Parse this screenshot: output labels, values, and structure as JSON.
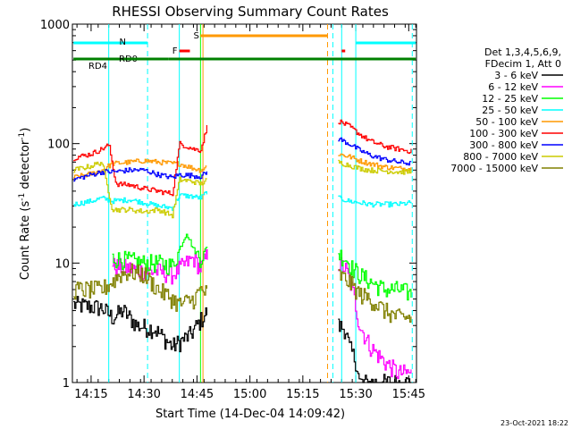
{
  "chart_data": {
    "type": "line",
    "title": "RHESSI Observing Summary Count Rates",
    "xlabel": "Start Time (14-Dec-04 14:09:42)",
    "ylabel_main": "Count Rate (s",
    "ylabel_sup1": "-1",
    "ylabel_mid": " detector",
    "ylabel_sup2": "-1",
    "ylabel_end": ")",
    "y_scale": "log",
    "ylim": [
      1,
      1000
    ],
    "xlim_min": [
      14.083,
      15.85
    ],
    "yticks": [
      {
        "v": 1,
        "label": "1"
      },
      {
        "v": 10,
        "label": "10"
      },
      {
        "v": 100,
        "label": "100"
      },
      {
        "v": 1000,
        "label": "1000"
      }
    ],
    "xticks": [
      {
        "t": 855,
        "label": "14:15"
      },
      {
        "t": 870,
        "label": "14:30"
      },
      {
        "t": 885,
        "label": "14:45"
      },
      {
        "t": 900,
        "label": "15:00"
      },
      {
        "t": 915,
        "label": "15:15"
      },
      {
        "t": 930,
        "label": "15:30"
      },
      {
        "t": 945,
        "label": "15:45"
      }
    ],
    "x_range_minutes": [
      849.7,
      947.2
    ],
    "legend_header": [
      "Det 1,3,4,5,6,9,",
      "FDecim 1, Att 0"
    ],
    "series": [
      {
        "name": "3 - 6 keV",
        "color": "#000000",
        "pre": [
          [
            850,
            4.5
          ],
          [
            858,
            4.2
          ],
          [
            861,
            3.5
          ],
          [
            864,
            4
          ],
          [
            868,
            3
          ],
          [
            873,
            2.8
          ],
          [
            878,
            2
          ],
          [
            883,
            2.5
          ],
          [
            888,
            4
          ]
        ],
        "post": [
          [
            925,
            3
          ],
          [
            927,
            2.8
          ],
          [
            928,
            2
          ],
          [
            930,
            1.5
          ],
          [
            931,
            1
          ],
          [
            935,
            1
          ],
          [
            940,
            1
          ],
          [
            946,
            1
          ]
        ]
      },
      {
        "name": "6 - 12 keV",
        "color": "#ff00ff",
        "pre": [
          [
            861,
            9.5
          ],
          [
            866,
            9
          ],
          [
            870,
            8.5
          ],
          [
            874,
            8.5
          ],
          [
            878,
            8
          ],
          [
            882,
            10
          ],
          [
            884,
            11
          ],
          [
            886,
            9
          ],
          [
            888,
            12
          ]
        ],
        "post": [
          [
            925,
            10
          ],
          [
            927,
            9
          ],
          [
            929,
            6
          ],
          [
            931,
            3
          ],
          [
            934,
            2
          ],
          [
            938,
            1.5
          ],
          [
            942,
            1.2
          ],
          [
            946,
            1.2
          ]
        ]
      },
      {
        "name": "12 - 25 keV",
        "color": "#00ff00",
        "pre": [
          [
            861,
            11
          ],
          [
            866,
            10.5
          ],
          [
            870,
            10
          ],
          [
            874,
            10
          ],
          [
            878,
            9.5
          ],
          [
            882,
            18
          ],
          [
            884,
            13
          ],
          [
            886,
            11
          ],
          [
            888,
            14
          ]
        ],
        "post": [
          [
            925,
            12
          ],
          [
            927,
            11
          ],
          [
            929,
            9
          ],
          [
            931,
            8
          ],
          [
            934,
            7
          ],
          [
            938,
            6
          ],
          [
            942,
            6
          ],
          [
            946,
            5.5
          ]
        ]
      },
      {
        "name": "25 - 50 keV",
        "color": "#00ffff",
        "pre": [
          [
            850,
            31
          ],
          [
            855,
            33
          ],
          [
            858,
            35
          ],
          [
            861,
            33
          ],
          [
            866,
            34
          ],
          [
            870,
            32
          ],
          [
            874,
            30
          ],
          [
            878,
            29
          ],
          [
            880,
            37
          ],
          [
            884,
            36
          ],
          [
            886,
            35
          ],
          [
            888,
            40
          ]
        ],
        "post": [
          [
            925,
            35
          ],
          [
            928,
            33
          ],
          [
            931,
            32
          ],
          [
            934,
            31
          ],
          [
            938,
            31
          ],
          [
            942,
            31
          ],
          [
            946,
            32
          ]
        ]
      },
      {
        "name": "50 - 100 keV",
        "color": "#ff9900",
        "pre": [
          [
            850,
            52
          ],
          [
            855,
            56
          ],
          [
            858,
            60
          ],
          [
            861,
            68
          ],
          [
            866,
            70
          ],
          [
            870,
            72
          ],
          [
            874,
            70
          ],
          [
            878,
            68
          ],
          [
            880,
            68
          ],
          [
            884,
            62
          ],
          [
            886,
            60
          ],
          [
            888,
            65
          ]
        ],
        "post": [
          [
            925,
            82
          ],
          [
            928,
            78
          ],
          [
            931,
            72
          ],
          [
            934,
            68
          ],
          [
            938,
            64
          ],
          [
            942,
            62
          ],
          [
            946,
            62
          ]
        ]
      },
      {
        "name": "100 - 300 keV",
        "color": "#ff0000",
        "pre": [
          [
            850,
            76
          ],
          [
            855,
            82
          ],
          [
            858,
            90
          ],
          [
            860,
            98
          ],
          [
            862,
            46
          ],
          [
            866,
            45
          ],
          [
            870,
            42
          ],
          [
            874,
            40
          ],
          [
            878,
            38
          ],
          [
            880,
            100
          ],
          [
            884,
            90
          ],
          [
            886,
            88
          ],
          [
            888,
            145
          ]
        ],
        "post": [
          [
            925,
            155
          ],
          [
            928,
            140
          ],
          [
            931,
            120
          ],
          [
            934,
            105
          ],
          [
            938,
            95
          ],
          [
            942,
            90
          ],
          [
            946,
            86
          ]
        ]
      },
      {
        "name": "300 - 800 keV",
        "color": "#0000ff",
        "pre": [
          [
            850,
            50
          ],
          [
            855,
            55
          ],
          [
            858,
            58
          ],
          [
            861,
            58
          ],
          [
            866,
            60
          ],
          [
            870,
            60
          ],
          [
            874,
            55
          ],
          [
            878,
            52
          ],
          [
            880,
            55
          ],
          [
            884,
            54
          ],
          [
            886,
            53
          ],
          [
            888,
            58
          ]
        ],
        "post": [
          [
            925,
            110
          ],
          [
            928,
            100
          ],
          [
            931,
            88
          ],
          [
            934,
            80
          ],
          [
            938,
            74
          ],
          [
            942,
            70
          ],
          [
            946,
            68
          ]
        ]
      },
      {
        "name": "800 - 7000 keV",
        "color": "#cccc00",
        "pre": [
          [
            850,
            60
          ],
          [
            855,
            65
          ],
          [
            858,
            70
          ],
          [
            861,
            28
          ],
          [
            866,
            28
          ],
          [
            870,
            27
          ],
          [
            874,
            28
          ],
          [
            878,
            25
          ],
          [
            880,
            50
          ],
          [
            884,
            48
          ],
          [
            886,
            46
          ],
          [
            888,
            50
          ]
        ],
        "post": [
          [
            925,
            70
          ],
          [
            928,
            66
          ],
          [
            931,
            62
          ],
          [
            934,
            60
          ],
          [
            938,
            59
          ],
          [
            942,
            58
          ],
          [
            946,
            58
          ]
        ]
      },
      {
        "name": "7000 - 15000 keV",
        "color": "#808000",
        "pre": [
          [
            850,
            6
          ],
          [
            855,
            6
          ],
          [
            858,
            6
          ],
          [
            861,
            7
          ],
          [
            863,
            8
          ],
          [
            866,
            8.5
          ],
          [
            870,
            8
          ],
          [
            874,
            6
          ],
          [
            878,
            5
          ],
          [
            880,
            4.5
          ],
          [
            884,
            5
          ],
          [
            886,
            6
          ],
          [
            888,
            5.5
          ]
        ],
        "post": [
          [
            925,
            8
          ],
          [
            928,
            7
          ],
          [
            931,
            5.5
          ],
          [
            934,
            5
          ],
          [
            938,
            4
          ],
          [
            942,
            3.5
          ],
          [
            946,
            3.5
          ]
        ]
      }
    ],
    "flags": [
      {
        "name": "N",
        "color": "#00ffff",
        "label": "N",
        "segments": [
          [
            850,
            871
          ],
          [
            930,
            947
          ]
        ]
      },
      {
        "name": "F",
        "color": "#ff0000",
        "label": "F",
        "segments": [
          [
            880,
            883
          ],
          [
            926,
            927
          ]
        ]
      },
      {
        "name": "S",
        "color": "#ff9900",
        "label": "S",
        "segments": [
          [
            886,
            922
          ]
        ]
      },
      {
        "name": "RD0",
        "color": "#008000",
        "label": "RD0",
        "segments": [
          [
            850,
            865
          ]
        ]
      },
      {
        "name": "RD4",
        "color": "#008000",
        "label": "RD4",
        "segments": [
          [
            865,
            877
          ],
          [
            877,
            922
          ],
          [
            922,
            947
          ]
        ]
      }
    ],
    "vlines": [
      {
        "t": 860,
        "color": "#00ffff",
        "dash": false
      },
      {
        "t": 871,
        "color": "#00ffff",
        "dash": true
      },
      {
        "t": 880,
        "color": "#00ffff",
        "dash": false
      },
      {
        "t": 886,
        "color": "#00ff00",
        "dash": false
      },
      {
        "t": 886.7,
        "color": "#ff9900",
        "dash": false
      },
      {
        "t": 922,
        "color": "#ff9900",
        "dash": true
      },
      {
        "t": 923.5,
        "color": "#00ffff",
        "dash": true
      },
      {
        "t": 926,
        "color": "#00ffff",
        "dash": false
      },
      {
        "t": 930,
        "color": "#00ffff",
        "dash": false
      },
      {
        "t": 946,
        "color": "#00ffff",
        "dash": true
      }
    ],
    "footer": "23-Oct-2021 18:22"
  }
}
